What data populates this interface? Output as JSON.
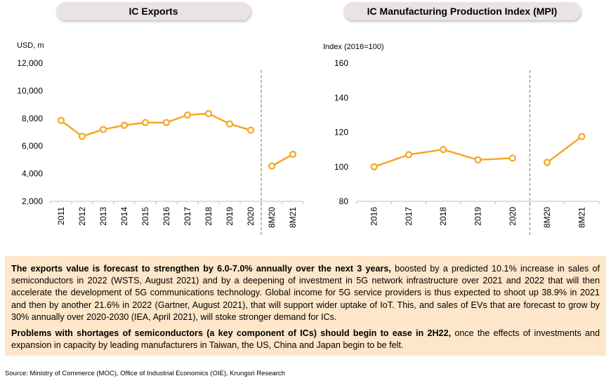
{
  "chart_data": [
    {
      "type": "line",
      "title": "IC Exports",
      "ylabel": "USD, m",
      "ylim": [
        2000,
        12000
      ],
      "yticks": [
        "2,000",
        "4,000",
        "6,000",
        "8,000",
        "10,000",
        "12,000"
      ],
      "categories": [
        "2011",
        "2012",
        "2013",
        "2014",
        "2015",
        "2016",
        "2017",
        "2018",
        "2019",
        "2020",
        "8M20",
        "8M21"
      ],
      "segments": [
        {
          "x": [
            "2011",
            "2012",
            "2013",
            "2014",
            "2015",
            "2016",
            "2017",
            "2018",
            "2019",
            "2020"
          ],
          "values": [
            7850,
            6700,
            7200,
            7500,
            7700,
            7700,
            8250,
            8350,
            7600,
            7150
          ]
        },
        {
          "x": [
            "8M20",
            "8M21"
          ],
          "values": [
            4550,
            5400
          ]
        }
      ],
      "grid": false,
      "divider_after": "2020",
      "color": "#f5a623"
    },
    {
      "type": "line",
      "title": "IC Manufacturing Production Index (MPI)",
      "ylabel": "Index (2016=100)",
      "ylim": [
        80,
        160
      ],
      "yticks": [
        "80",
        "100",
        "120",
        "140",
        "160"
      ],
      "categories": [
        "2016",
        "2017",
        "2018",
        "2019",
        "2020",
        "8M20",
        "8M21"
      ],
      "segments": [
        {
          "x": [
            "2016",
            "2017",
            "2018",
            "2019",
            "2020"
          ],
          "values": [
            100,
            107,
            110,
            104,
            105
          ]
        },
        {
          "x": [
            "8M20",
            "8M21"
          ],
          "values": [
            102.5,
            117.5
          ]
        }
      ],
      "grid": false,
      "divider_after": "2020",
      "color": "#f5a623"
    }
  ],
  "text": {
    "p1_bold": "The exports value is forecast to strengthen by 6.0-7.0% annually over the next 3 years,",
    "p1_rest": " boosted by a predicted 10.1% increase in sales of semiconductors in 2022 (WSTS, August 2021) and by a deepening of investment in 5G network infrastructure over 2021 and 2022 that will then accelerate the development of 5G communications technology. Global income for 5G service providers is thus expected to shoot up 38.9% in 2021 and then by another 21.6% in 2022 (Gartner, August 2021), that will support wider uptake of IoT. This, and sales of EVs that are forecast to grow by 30% annually over 2020-2030 (IEA, April 2021), will stoke stronger demand for ICs.",
    "p2_bold": "Problems with shortages of semiconductors (a key component of ICs) should begin to ease in 2H22,",
    "p2_rest": " once the effects of investments and expansion in capacity by leading manufacturers in Taiwan, the US, China and Japan begin to be felt."
  },
  "source": "Source: Ministry of Commerce (MOC), Office of Industrial Economics (OIE), Krungsri Research"
}
